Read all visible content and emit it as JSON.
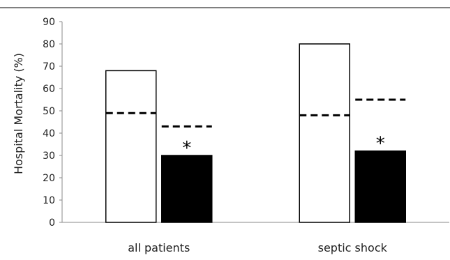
{
  "chart_data": {
    "type": "bar",
    "ylabel": "Hospital Mortality (%)",
    "ylim": [
      0,
      90
    ],
    "yticks": [
      0,
      10,
      20,
      30,
      40,
      50,
      60,
      70,
      80,
      90
    ],
    "categories": [
      "all patients",
      "septic shock"
    ],
    "series": [
      {
        "values": [
          68,
          80
        ],
        "fill": "#ffffff",
        "stroke": "#000000"
      },
      {
        "values": [
          30,
          32
        ],
        "fill": "#000000",
        "stroke": "#000000"
      }
    ],
    "reference_lines": [
      {
        "values": [
          49,
          48
        ],
        "series_index": 0,
        "style": "dashed"
      },
      {
        "values": [
          43,
          55
        ],
        "series_index": 1,
        "style": "dashed"
      }
    ],
    "annotations": [
      {
        "category_index": 0,
        "series_index": 1,
        "text": "*"
      },
      {
        "category_index": 1,
        "series_index": 1,
        "text": "*"
      }
    ],
    "grid": false
  }
}
